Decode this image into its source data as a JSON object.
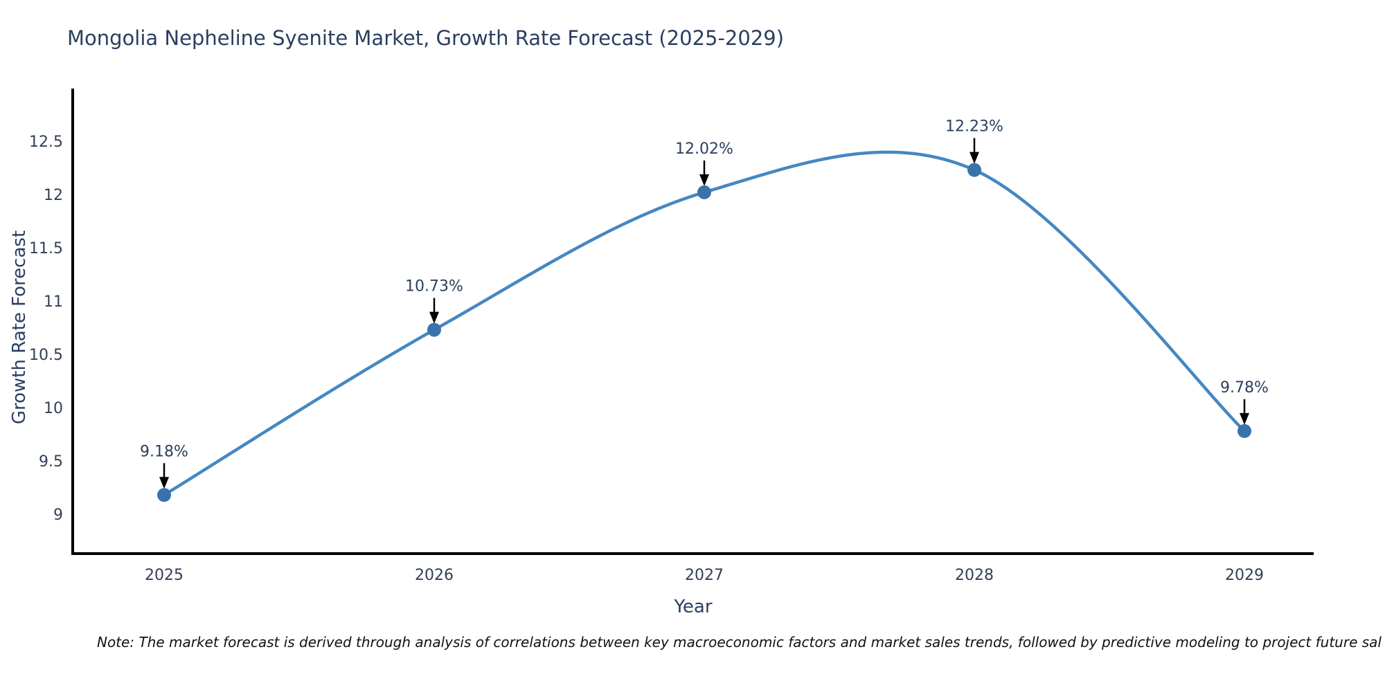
{
  "header": {
    "title": "Mongolia Nepheline Syenite Market, Growth Rate Forecast (2025-2029)"
  },
  "footnote": "Note: The market forecast is derived through analysis of correlations between key macroeconomic factors and market sales trends, followed by predictive modeling to project future sal",
  "chart_data": {
    "type": "line",
    "title": "Mongolia Nepheline Syenite Market, Growth Rate Forecast (2025-2029)",
    "xlabel": "Year",
    "ylabel": "Growth Rate Forecast",
    "categories": [
      "2025",
      "2026",
      "2027",
      "2028",
      "2029"
    ],
    "series": [
      {
        "name": "Growth Rate Forecast",
        "values": [
          9.18,
          10.73,
          12.02,
          12.23,
          9.78
        ],
        "labels": [
          "9.18%",
          "10.73%",
          "12.02%",
          "12.23%",
          "9.78%"
        ]
      }
    ],
    "line_shape": "spline",
    "markers": true,
    "annotation_style": "value label above each point with a black arrow pointing down to the marker",
    "yticks": [
      9,
      9.5,
      10,
      10.5,
      11,
      11.5,
      12,
      12.5
    ],
    "ylim": [
      8.7,
      13.0
    ],
    "grid": false,
    "legend_position": "none",
    "colors": {
      "line": "#4587c1",
      "marker": "#3a73ab",
      "axis": "#000000",
      "title_text": "#2a3f5f",
      "tick_text": "#333f52",
      "annotation_text": "#2a3f5f",
      "arrow": "#000000",
      "note_text": "#111111",
      "background": "#ffffff"
    }
  }
}
